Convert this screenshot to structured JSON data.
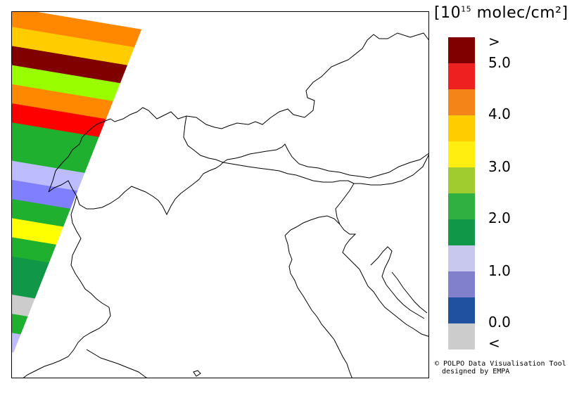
{
  "legend": {
    "title_prefix": "10",
    "title_exponent": "15",
    "title_unit": "molec/cm²",
    "bracket_open": "[",
    "bracket_close": "]",
    "ticks": {
      "above": ">",
      "t50": "5.0",
      "t40": "4.0",
      "t30": "3.0",
      "t20": "2.0",
      "t10": "1.0",
      "t00": "0.0",
      "below": "<"
    },
    "colors": [
      "#800000",
      "#ee2020",
      "#f58418",
      "#ffcc00",
      "#ffee10",
      "#a0cc30",
      "#30b040",
      "#109848",
      "#c8c8ee",
      "#8080cc",
      "#2050a0",
      "#cccccc"
    ]
  },
  "swath_colors": [
    "#ff8800",
    "#ffcc00",
    "#800000",
    "#99ff00",
    "#ff8800",
    "#ff0000",
    "#20b030",
    "#20b030",
    "#bcbcff",
    "#8080ff",
    "#20b030",
    "#ffff00",
    "#20b030",
    "#109848",
    "#109848",
    "#cccccc",
    "#20b030",
    "#bcbcff"
  ],
  "credit": {
    "line1": "© POLPO Data Visualisation Tool",
    "line2": "designed by EMPA"
  }
}
